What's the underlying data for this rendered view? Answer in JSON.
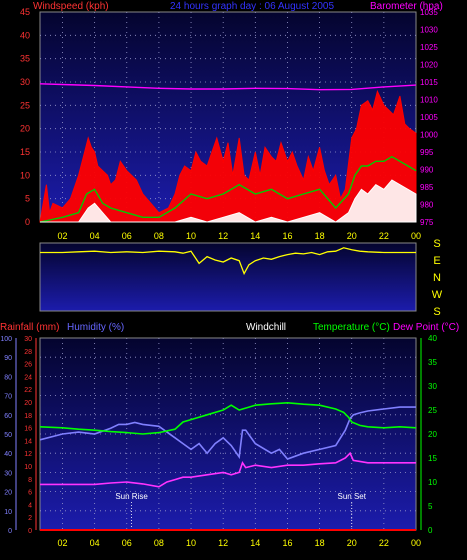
{
  "header": {
    "windspeed_label": "Windspeed (kph)",
    "graph_title": "24 hours graph day : 06 August 2005",
    "barometer_label": "Barometer (hpa)"
  },
  "lower_header": {
    "rainfall_label": "Rainfall (mm)",
    "humidity_label": "Humidity (%)",
    "windchill_label": "Windchill",
    "temperature_label": "Temperature (°C)",
    "dewpoint_label": "Dew Point (°C)"
  },
  "direction_labels": [
    "S",
    "E",
    "N",
    "W",
    "S"
  ],
  "markers": {
    "sunrise": "Sun Rise",
    "sunset": "Sun Set"
  },
  "colors": {
    "plot_bg_top": "#05053a",
    "plot_bg_bottom": "#1a1aa6",
    "wind_gust": "#ff0000",
    "wind_avg": "#00cc00",
    "wind_low": "#ffffff",
    "barometer": "#ff00ff",
    "direction": "#ffff00",
    "humidity": "#8080ff",
    "temperature": "#00ff00",
    "dewpoint": "#ff33ff",
    "rainfall": "#ff0000",
    "axis_red": "#ff3333",
    "axis_green": "#00ff00",
    "axis_magenta": "#ff00ff",
    "axis_blue": "#8080ff"
  },
  "chart_data": [
    {
      "type": "line",
      "title": "24 hours graph day : 06 August 2005",
      "x_ticks": [
        "02",
        "04",
        "06",
        "08",
        "10",
        "12",
        "14",
        "16",
        "18",
        "20",
        "22",
        "00"
      ],
      "xlim_hours": [
        0.6,
        24
      ],
      "ylabel_left": "Windspeed (kph)",
      "ylim_left": [
        0,
        45
      ],
      "yticks_left": [
        0,
        5,
        10,
        15,
        20,
        25,
        30,
        35,
        40,
        45
      ],
      "ylabel_right": "Barometer (hpa)",
      "ylim_right": [
        975,
        1035
      ],
      "yticks_right": [
        975,
        980,
        985,
        990,
        995,
        1000,
        1005,
        1010,
        1015,
        1020,
        1025,
        1030,
        1035
      ],
      "grid": true,
      "series": [
        {
          "name": "Windspeed gust",
          "axis": "left",
          "color": "#ff0000",
          "x": [
            0.6,
            1.0,
            1.2,
            1.4,
            2.0,
            2.5,
            3.0,
            3.3,
            3.6,
            3.8,
            4.0,
            4.2,
            4.5,
            4.8,
            5.0,
            5.3,
            5.6,
            6.0,
            6.3,
            6.6,
            7.0,
            7.5,
            8.0,
            8.6,
            9.0,
            9.3,
            9.6,
            10.0,
            10.3,
            10.6,
            11.0,
            11.3,
            11.6,
            12.0,
            12.3,
            12.6,
            13.0,
            13.3,
            13.6,
            14.0,
            14.3,
            14.6,
            15.0,
            15.3,
            15.6,
            16.0,
            16.3,
            16.6,
            17.0,
            17.3,
            17.6,
            18.0,
            18.3,
            18.6,
            19.0,
            19.3,
            19.6,
            20.0,
            20.3,
            20.6,
            21.0,
            21.3,
            21.6,
            22.0,
            22.3,
            22.6,
            23.0,
            23.3,
            23.6,
            24.0
          ],
          "values": [
            0,
            8,
            2,
            4,
            3,
            5,
            10,
            14,
            18,
            16,
            15,
            12,
            11,
            10,
            8,
            9,
            13,
            11,
            10,
            9,
            6,
            4,
            2,
            3,
            6,
            10,
            12,
            11,
            15,
            13,
            12,
            15,
            18,
            13,
            17,
            10,
            18,
            10,
            9,
            15,
            10,
            16,
            14,
            13,
            17,
            13,
            15,
            12,
            9,
            14,
            11,
            16,
            11,
            8,
            10,
            5,
            7,
            18,
            20,
            25,
            26,
            24,
            28,
            25,
            24,
            23,
            27,
            21,
            20,
            19
          ]
        },
        {
          "name": "Windspeed average",
          "axis": "left",
          "color": "#00cc00",
          "x": [
            0.6,
            2.0,
            3.0,
            3.5,
            4.0,
            4.5,
            5.0,
            6.0,
            7.0,
            8.0,
            9.0,
            10.0,
            11.0,
            12.0,
            13.0,
            14.0,
            15.0,
            16.0,
            17.0,
            18.0,
            19.0,
            19.8,
            20.2,
            20.6,
            21.0,
            21.5,
            22.0,
            22.5,
            23.0,
            23.5,
            24.0
          ],
          "values": [
            0,
            1,
            2,
            6,
            7,
            4,
            3,
            2,
            1,
            1,
            3,
            6,
            5,
            6,
            8,
            6,
            7,
            5,
            6,
            7,
            3,
            6,
            10,
            12,
            12,
            13,
            13,
            14,
            13,
            12,
            11
          ]
        },
        {
          "name": "Windspeed low",
          "axis": "left",
          "color": "#ffffff",
          "x": [
            0.6,
            3.0,
            3.6,
            4.0,
            4.5,
            5.0,
            9.0,
            10.0,
            11.0,
            12.0,
            13.0,
            14.0,
            15.0,
            16.0,
            17.0,
            18.0,
            19.0,
            19.8,
            20.2,
            20.6,
            21.0,
            21.5,
            22.0,
            22.5,
            23.0,
            24.0
          ],
          "values": [
            0,
            0,
            3,
            4,
            2,
            0,
            0,
            1,
            0,
            1,
            2,
            0,
            1,
            0,
            1,
            2,
            0,
            2,
            5,
            7,
            6,
            8,
            7,
            9,
            8,
            6
          ]
        },
        {
          "name": "Barometer",
          "axis": "right",
          "color": "#ff00ff",
          "x": [
            0.6,
            2.0,
            4.0,
            6.0,
            8.0,
            10.0,
            12.0,
            14.0,
            16.0,
            18.0,
            20.0,
            22.0,
            24.0
          ],
          "values": [
            1014.5,
            1014.3,
            1014.0,
            1013.6,
            1013.2,
            1013.0,
            1013.0,
            1013.2,
            1013.1,
            1012.8,
            1012.9,
            1013.6,
            1014.1
          ]
        }
      ]
    },
    {
      "type": "line",
      "title": "",
      "x_ticks": [
        "02",
        "04",
        "06",
        "08",
        "10",
        "12",
        "14",
        "16",
        "18",
        "20",
        "22",
        "00"
      ],
      "xlim_hours": [
        0.6,
        24
      ],
      "y_tick_labels": [
        "S",
        "E",
        "N",
        "W",
        "S"
      ],
      "series": [
        {
          "name": "Wind direction",
          "color": "#ffff00",
          "x": [
            0.6,
            2.0,
            3.0,
            4.0,
            5.0,
            6.0,
            7.0,
            8.0,
            9.0,
            9.5,
            10.0,
            10.5,
            11.0,
            11.5,
            12.0,
            12.5,
            13.0,
            13.3,
            13.6,
            14.0,
            14.5,
            15.0,
            15.5,
            16.0,
            16.5,
            17.0,
            17.5,
            18.0,
            18.5,
            19.0,
            19.5,
            20.0,
            20.5,
            21.0,
            22.0,
            23.0,
            24.0
          ],
          "values": [
            0.86,
            0.86,
            0.87,
            0.88,
            0.86,
            0.87,
            0.86,
            0.88,
            0.87,
            0.85,
            0.88,
            0.7,
            0.8,
            0.75,
            0.72,
            0.78,
            0.74,
            0.55,
            0.68,
            0.74,
            0.78,
            0.76,
            0.8,
            0.83,
            0.85,
            0.84,
            0.86,
            0.83,
            0.87,
            0.88,
            0.93,
            0.9,
            0.88,
            0.87,
            0.86,
            0.86,
            0.86
          ]
        }
      ]
    },
    {
      "type": "line",
      "title": "",
      "x_ticks": [
        "02",
        "04",
        "06",
        "08",
        "10",
        "12",
        "14",
        "16",
        "18",
        "20",
        "22",
        "00"
      ],
      "xlim_hours": [
        0.6,
        24
      ],
      "axes": [
        {
          "label": "Rainfall (mm)",
          "ylim": [
            0,
            30
          ],
          "ticks": [
            0,
            2,
            4,
            6,
            8,
            10,
            12,
            14,
            16,
            18,
            20,
            22,
            24,
            26,
            28,
            30
          ]
        },
        {
          "label": "Humidity (%)",
          "ylim": [
            0,
            100
          ],
          "ticks": [
            0,
            10,
            20,
            30,
            40,
            50,
            60,
            70,
            80,
            90,
            100
          ]
        },
        {
          "label": "Temperature (°C)",
          "ylim": [
            0,
            40
          ],
          "ticks": [
            0,
            5,
            10,
            15,
            20,
            25,
            30,
            35,
            40
          ]
        },
        {
          "label": "Dew Point (°C)",
          "ylim": [
            0,
            40
          ],
          "ticks": [
            0,
            5,
            10,
            15,
            20,
            25,
            30,
            35,
            40
          ]
        }
      ],
      "markers": [
        {
          "label": "Sun Rise",
          "x_hour": 6.3
        },
        {
          "label": "Sun Set",
          "x_hour": 20.0
        }
      ],
      "grid": true,
      "series": [
        {
          "name": "Rainfall",
          "axis": "Rainfall (mm)",
          "color": "#ff0000",
          "x": [
            0.6,
            24.0
          ],
          "values": [
            0,
            0
          ]
        },
        {
          "name": "Humidity",
          "axis": "Humidity (%)",
          "color": "#8080ff",
          "x": [
            0.6,
            2.0,
            3.0,
            4.0,
            5.0,
            5.5,
            6.0,
            6.5,
            7.0,
            8.0,
            9.0,
            9.5,
            10.0,
            10.5,
            11.0,
            11.5,
            12.0,
            12.5,
            13.0,
            13.2,
            13.4,
            14.0,
            15.0,
            15.5,
            16.0,
            17.0,
            18.0,
            19.0,
            19.6,
            19.9,
            20.1,
            20.5,
            21.0,
            22.0,
            23.0,
            24.0
          ],
          "values": [
            47,
            50,
            51,
            50,
            53,
            55,
            55,
            56,
            55,
            54,
            48,
            45,
            42,
            45,
            40,
            45,
            48,
            44,
            38,
            52,
            52,
            45,
            40,
            42,
            37,
            40,
            42,
            44,
            52,
            58,
            60,
            61,
            62,
            63,
            64,
            64
          ]
        },
        {
          "name": "Temperature",
          "axis": "Temperature (°C)",
          "color": "#00ff00",
          "x": [
            0.6,
            2.0,
            3.0,
            4.0,
            5.0,
            6.0,
            7.0,
            8.0,
            9.0,
            9.5,
            10.0,
            11.0,
            12.0,
            12.5,
            13.0,
            13.5,
            14.0,
            15.0,
            16.0,
            17.0,
            18.0,
            19.0,
            19.5,
            19.8,
            20.0,
            20.5,
            21.0,
            22.0,
            23.0,
            24.0
          ],
          "values": [
            21.5,
            21.3,
            21.0,
            20.8,
            20.5,
            20.3,
            20.0,
            20.3,
            21.0,
            22.5,
            23.0,
            24.0,
            25.0,
            26.0,
            25.0,
            25.5,
            26.0,
            26.3,
            26.5,
            26.2,
            26.0,
            25.2,
            24.5,
            23.5,
            22.5,
            21.8,
            21.5,
            21.3,
            21.5,
            21.3
          ]
        },
        {
          "name": "Dew Point",
          "axis": "Dew Point (°C)",
          "color": "#ff33ff",
          "x": [
            0.6,
            2.0,
            3.0,
            4.0,
            5.0,
            6.0,
            7.0,
            8.0,
            8.5,
            9.0,
            9.5,
            10.0,
            11.0,
            12.0,
            12.5,
            13.0,
            13.2,
            13.4,
            14.0,
            15.0,
            16.0,
            17.0,
            18.0,
            19.0,
            19.6,
            19.9,
            20.1,
            20.5,
            21.0,
            22.0,
            23.0,
            24.0
          ],
          "values": [
            9.5,
            9.5,
            9.5,
            9.5,
            9.8,
            10.0,
            9.6,
            9.0,
            10.0,
            10.5,
            11.0,
            11.0,
            11.5,
            12.0,
            11.5,
            12.0,
            14.0,
            13.0,
            13.5,
            13.0,
            13.5,
            13.5,
            13.8,
            14.0,
            15.0,
            16.0,
            14.5,
            14.3,
            14.0,
            14.0,
            14.0,
            14.0
          ]
        }
      ]
    }
  ]
}
